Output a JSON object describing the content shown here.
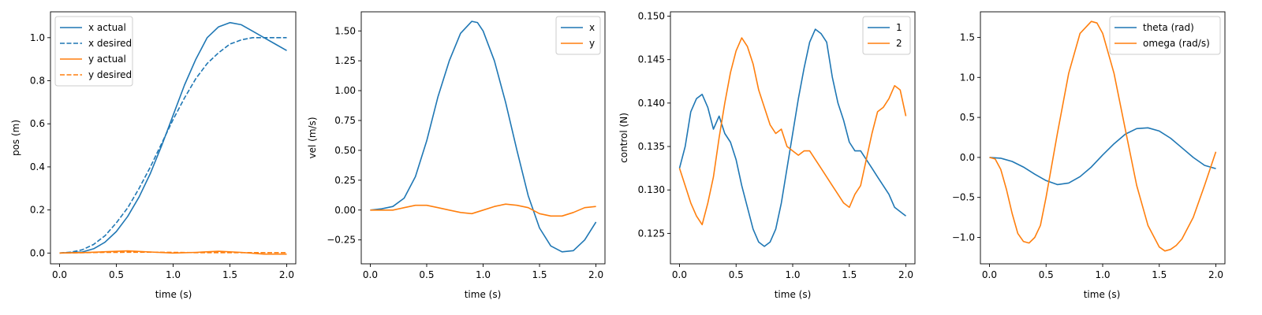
{
  "colors": {
    "blue": "#1f77b4",
    "orange": "#ff7f0e"
  },
  "chart_data": [
    {
      "type": "line",
      "title": "",
      "xlabel": "time (s)",
      "ylabel": "pos (m)",
      "xlim": [
        -0.08,
        2.08
      ],
      "ylim": [
        -0.05,
        1.12
      ],
      "xticks": [
        0.0,
        0.5,
        1.0,
        1.5,
        2.0
      ],
      "xtick_labels": [
        "0.0",
        "0.5",
        "1.0",
        "1.5",
        "2.0"
      ],
      "yticks": [
        0.0,
        0.2,
        0.4,
        0.6,
        0.8,
        1.0
      ],
      "ytick_labels": [
        "0.0",
        "0.2",
        "0.4",
        "0.6",
        "0.8",
        "1.0"
      ],
      "legend": "top-left",
      "grid": false,
      "series": [
        {
          "name": "x actual",
          "color": "#1f77b4",
          "dash": "solid",
          "x": [
            0,
            0.2,
            0.3,
            0.4,
            0.5,
            0.6,
            0.7,
            0.8,
            0.9,
            1.0,
            1.1,
            1.2,
            1.3,
            1.4,
            1.5,
            1.6,
            1.7,
            1.8,
            1.9,
            2.0
          ],
          "y": [
            0,
            0.005,
            0.02,
            0.05,
            0.1,
            0.17,
            0.26,
            0.37,
            0.5,
            0.64,
            0.78,
            0.9,
            1.0,
            1.05,
            1.07,
            1.06,
            1.03,
            1.0,
            0.97,
            0.94
          ]
        },
        {
          "name": "x desired",
          "color": "#1f77b4",
          "dash": "dashed",
          "x": [
            0,
            0.1,
            0.2,
            0.3,
            0.4,
            0.5,
            0.6,
            0.7,
            0.8,
            0.9,
            1.0,
            1.1,
            1.2,
            1.3,
            1.4,
            1.5,
            1.6,
            1.7,
            1.75,
            1.8,
            2.0
          ],
          "y": [
            0,
            0.004,
            0.015,
            0.04,
            0.08,
            0.14,
            0.21,
            0.3,
            0.4,
            0.51,
            0.62,
            0.72,
            0.81,
            0.88,
            0.93,
            0.97,
            0.99,
            1.0,
            1.0,
            1.0,
            1.0
          ]
        },
        {
          "name": "y actual",
          "color": "#ff7f0e",
          "dash": "solid",
          "x": [
            0,
            0.2,
            0.4,
            0.6,
            0.8,
            1.0,
            1.2,
            1.4,
            1.6,
            1.8,
            2.0
          ],
          "y": [
            0,
            0.002,
            0.006,
            0.01,
            0.005,
            0.0,
            0.003,
            0.008,
            0.003,
            -0.005,
            -0.005
          ]
        },
        {
          "name": "y desired",
          "color": "#ff7f0e",
          "dash": "dashed",
          "x": [
            0,
            0.4,
            0.8,
            1.2,
            1.6,
            2.0
          ],
          "y": [
            0,
            0.003,
            0.004,
            0.002,
            0.002,
            0.002
          ]
        }
      ]
    },
    {
      "type": "line",
      "title": "",
      "xlabel": "time (s)",
      "ylabel": "vel (m/s)",
      "xlim": [
        -0.08,
        2.08
      ],
      "ylim": [
        -0.45,
        1.66
      ],
      "xticks": [
        0.0,
        0.5,
        1.0,
        1.5,
        2.0
      ],
      "xtick_labels": [
        "0.0",
        "0.5",
        "1.0",
        "1.5",
        "2.0"
      ],
      "yticks": [
        -0.25,
        0.0,
        0.25,
        0.5,
        0.75,
        1.0,
        1.25,
        1.5
      ],
      "ytick_labels": [
        "−0.25",
        "0.00",
        "0.25",
        "0.50",
        "0.75",
        "1.00",
        "1.25",
        "1.50"
      ],
      "legend": "top-right",
      "grid": false,
      "series": [
        {
          "name": "x",
          "color": "#1f77b4",
          "dash": "solid",
          "x": [
            0,
            0.1,
            0.2,
            0.3,
            0.4,
            0.5,
            0.6,
            0.7,
            0.8,
            0.9,
            0.95,
            1.0,
            1.1,
            1.2,
            1.3,
            1.4,
            1.5,
            1.6,
            1.7,
            1.8,
            1.9,
            2.0
          ],
          "y": [
            0,
            0.01,
            0.03,
            0.1,
            0.28,
            0.58,
            0.95,
            1.25,
            1.48,
            1.58,
            1.57,
            1.5,
            1.25,
            0.9,
            0.5,
            0.12,
            -0.15,
            -0.3,
            -0.35,
            -0.34,
            -0.25,
            -0.1
          ]
        },
        {
          "name": "y",
          "color": "#ff7f0e",
          "dash": "solid",
          "x": [
            0,
            0.2,
            0.3,
            0.4,
            0.5,
            0.6,
            0.7,
            0.8,
            0.9,
            1.0,
            1.1,
            1.2,
            1.3,
            1.4,
            1.5,
            1.6,
            1.7,
            1.8,
            1.9,
            2.0
          ],
          "y": [
            0,
            0.0,
            0.02,
            0.04,
            0.04,
            0.02,
            0.0,
            -0.02,
            -0.03,
            0.0,
            0.03,
            0.05,
            0.04,
            0.02,
            -0.03,
            -0.05,
            -0.05,
            -0.02,
            0.02,
            0.03
          ]
        }
      ]
    },
    {
      "type": "line",
      "title": "",
      "xlabel": "time (s)",
      "ylabel": "control (N)",
      "xlim": [
        -0.08,
        2.08
      ],
      "ylim": [
        0.1215,
        0.1505
      ],
      "xticks": [
        0.0,
        0.5,
        1.0,
        1.5,
        2.0
      ],
      "xtick_labels": [
        "0.0",
        "0.5",
        "1.0",
        "1.5",
        "2.0"
      ],
      "yticks": [
        0.125,
        0.13,
        0.135,
        0.14,
        0.145,
        0.15
      ],
      "ytick_labels": [
        "0.125",
        "0.130",
        "0.135",
        "0.140",
        "0.145",
        "0.150"
      ],
      "legend": "top-right",
      "grid": false,
      "series": [
        {
          "name": "1",
          "color": "#1f77b4",
          "dash": "solid",
          "x": [
            0,
            0.05,
            0.1,
            0.15,
            0.2,
            0.25,
            0.3,
            0.35,
            0.4,
            0.45,
            0.5,
            0.55,
            0.6,
            0.65,
            0.7,
            0.75,
            0.8,
            0.85,
            0.9,
            0.95,
            1.0,
            1.05,
            1.1,
            1.15,
            1.2,
            1.25,
            1.3,
            1.35,
            1.4,
            1.45,
            1.5,
            1.55,
            1.6,
            1.65,
            1.7,
            1.75,
            1.8,
            1.85,
            1.9,
            1.95,
            2.0
          ],
          "y": [
            0.1325,
            0.135,
            0.139,
            0.1405,
            0.141,
            0.1395,
            0.137,
            0.1385,
            0.1365,
            0.1355,
            0.1335,
            0.1305,
            0.128,
            0.1255,
            0.124,
            0.1235,
            0.124,
            0.1255,
            0.1285,
            0.1325,
            0.1365,
            0.1405,
            0.144,
            0.147,
            0.1485,
            0.148,
            0.147,
            0.143,
            0.14,
            0.138,
            0.1355,
            0.1345,
            0.1345,
            0.1335,
            0.1325,
            0.1315,
            0.1305,
            0.1295,
            0.128,
            0.1275,
            0.127
          ]
        },
        {
          "name": "2",
          "color": "#ff7f0e",
          "dash": "solid",
          "x": [
            0,
            0.05,
            0.1,
            0.15,
            0.2,
            0.25,
            0.3,
            0.35,
            0.4,
            0.45,
            0.5,
            0.55,
            0.6,
            0.65,
            0.7,
            0.75,
            0.8,
            0.85,
            0.9,
            0.95,
            1.0,
            1.05,
            1.1,
            1.15,
            1.2,
            1.25,
            1.3,
            1.35,
            1.4,
            1.45,
            1.5,
            1.55,
            1.6,
            1.65,
            1.7,
            1.75,
            1.8,
            1.85,
            1.9,
            1.95,
            2.0
          ],
          "y": [
            0.1325,
            0.1305,
            0.1285,
            0.127,
            0.126,
            0.1285,
            0.1315,
            0.136,
            0.14,
            0.1435,
            0.146,
            0.1475,
            0.1465,
            0.1445,
            0.1415,
            0.1395,
            0.1375,
            0.1365,
            0.137,
            0.135,
            0.1345,
            0.134,
            0.1345,
            0.1345,
            0.1335,
            0.1325,
            0.1315,
            0.1305,
            0.1295,
            0.1285,
            0.128,
            0.1295,
            0.1305,
            0.1335,
            0.1365,
            0.139,
            0.1395,
            0.1405,
            0.142,
            0.1415,
            0.1385
          ]
        }
      ]
    },
    {
      "type": "line",
      "title": "",
      "xlabel": "time (s)",
      "ylabel": "",
      "xlim": [
        -0.08,
        2.08
      ],
      "ylim": [
        -1.33,
        1.82
      ],
      "xticks": [
        0.0,
        0.5,
        1.0,
        1.5,
        2.0
      ],
      "xtick_labels": [
        "0.0",
        "0.5",
        "1.0",
        "1.5",
        "2.0"
      ],
      "yticks": [
        -1.0,
        -0.5,
        0.0,
        0.5,
        1.0,
        1.5
      ],
      "ytick_labels": [
        "−1.0",
        "−0.5",
        "0.0",
        "0.5",
        "1.0",
        "1.5"
      ],
      "legend": "top-right",
      "grid": false,
      "series": [
        {
          "name": "theta (rad)",
          "color": "#1f77b4",
          "dash": "solid",
          "x": [
            0,
            0.1,
            0.2,
            0.3,
            0.4,
            0.5,
            0.6,
            0.7,
            0.8,
            0.9,
            1.0,
            1.1,
            1.2,
            1.3,
            1.4,
            1.5,
            1.6,
            1.7,
            1.8,
            1.9,
            2.0
          ],
          "y": [
            0,
            -0.01,
            -0.05,
            -0.12,
            -0.21,
            -0.29,
            -0.34,
            -0.32,
            -0.24,
            -0.12,
            0.03,
            0.17,
            0.29,
            0.36,
            0.37,
            0.33,
            0.24,
            0.12,
            0.0,
            -0.1,
            -0.14
          ]
        },
        {
          "name": "omega (rad/s)",
          "color": "#ff7f0e",
          "dash": "solid",
          "x": [
            0,
            0.05,
            0.1,
            0.15,
            0.2,
            0.25,
            0.3,
            0.35,
            0.4,
            0.45,
            0.5,
            0.6,
            0.7,
            0.8,
            0.9,
            0.95,
            1.0,
            1.1,
            1.2,
            1.3,
            1.4,
            1.5,
            1.55,
            1.6,
            1.65,
            1.7,
            1.8,
            1.9,
            2.0
          ],
          "y": [
            0,
            -0.02,
            -0.15,
            -0.4,
            -0.7,
            -0.95,
            -1.05,
            -1.07,
            -1.0,
            -0.85,
            -0.5,
            0.3,
            1.05,
            1.55,
            1.7,
            1.68,
            1.55,
            1.05,
            0.35,
            -0.35,
            -0.85,
            -1.12,
            -1.17,
            -1.15,
            -1.1,
            -1.02,
            -0.75,
            -0.35,
            0.07
          ]
        }
      ]
    }
  ]
}
